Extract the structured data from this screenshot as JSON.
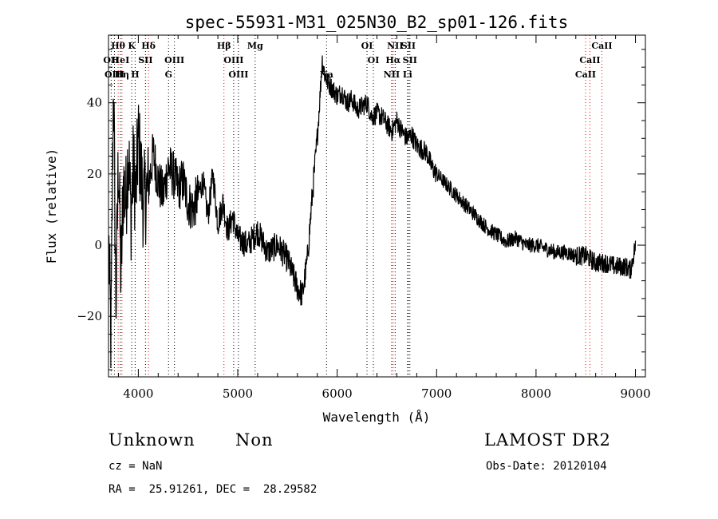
{
  "chart_data": {
    "type": "line",
    "title": "spec-55931-M31_025N30_B2_sp01-126.fits",
    "xlabel": "Wavelength (Å)",
    "ylabel": "Flux (relative)",
    "xlim": [
      3700,
      9100
    ],
    "ylim": [
      -37,
      59
    ],
    "x_ticks": [
      4000,
      5000,
      6000,
      7000,
      8000,
      9000
    ],
    "y_ticks": [
      -20,
      0,
      20,
      40
    ],
    "series": [
      {
        "color": "#000000",
        "x": [
          3700,
          3725,
          3750,
          3775,
          3800,
          3825,
          3850,
          3875,
          3900,
          3925,
          3950,
          3975,
          4000,
          4050,
          4100,
          4150,
          4200,
          4250,
          4300,
          4350,
          4400,
          4450,
          4500,
          4550,
          4600,
          4650,
          4700,
          4750,
          4800,
          4850,
          4900,
          4950,
          5000,
          5100,
          5200,
          5300,
          5400,
          5500,
          5550,
          5600,
          5650,
          5700,
          5750,
          5800,
          5850,
          5875,
          5900,
          5950,
          6000,
          6050,
          6100,
          6150,
          6200,
          6250,
          6300,
          6350,
          6400,
          6450,
          6500,
          6550,
          6600,
          6650,
          6700,
          6750,
          6800,
          6850,
          6900,
          6950,
          7000,
          7100,
          7200,
          7300,
          7400,
          7500,
          7600,
          7700,
          7800,
          7900,
          8000,
          8100,
          8200,
          8300,
          8400,
          8500,
          8600,
          8700,
          8800,
          8900,
          8950,
          9000
        ],
        "values": [
          5,
          -28,
          48,
          -18,
          26,
          -10,
          18,
          12,
          28,
          8,
          22,
          14,
          30,
          12,
          16,
          26,
          18,
          14,
          22,
          20,
          16,
          18,
          12,
          10,
          14,
          18,
          8,
          20,
          6,
          12,
          4,
          8,
          2,
          0,
          4,
          -2,
          0,
          -4,
          -8,
          -12,
          -14,
          -4,
          14,
          30,
          52,
          48,
          46,
          44,
          42,
          43,
          40,
          41,
          38,
          39,
          40,
          36,
          37,
          36,
          34,
          32,
          35,
          32,
          30,
          31,
          28,
          27,
          26,
          22,
          20,
          17,
          14,
          11,
          8,
          5,
          3,
          1,
          2,
          0,
          0,
          -1,
          -2,
          -2,
          -3,
          -3,
          -5,
          -5,
          -6,
          -6,
          -7,
          0
        ]
      }
    ],
    "line_markers": [
      {
        "label": "Hθ",
        "wavelength": 3797,
        "row": 0,
        "color": "#ff0000"
      },
      {
        "label": "K",
        "wavelength": 3934,
        "row": 0,
        "color": "#000000"
      },
      {
        "label": "Hδ",
        "wavelength": 4102,
        "row": 0,
        "color": "#ff0000"
      },
      {
        "label": "Hβ",
        "wavelength": 4861,
        "row": 0,
        "color": "#ff0000"
      },
      {
        "label": "Mg",
        "wavelength": 5175,
        "row": 0,
        "color": "#000000"
      },
      {
        "label": "OI",
        "wavelength": 6300,
        "row": 0,
        "color": "#000000"
      },
      {
        "label": "NII",
        "wavelength": 6583,
        "row": 0,
        "color": "#000000"
      },
      {
        "label": "SII",
        "wavelength": 6716,
        "row": 0,
        "color": "#000000"
      },
      {
        "label": "CaII",
        "wavelength": 8662,
        "row": 0,
        "color": "#ff0000"
      },
      {
        "label": "OII",
        "wavelength": 3727,
        "row": 1,
        "color": "#000000"
      },
      {
        "label": "HeI",
        "wavelength": 3820,
        "row": 1,
        "color": "#000000"
      },
      {
        "label": "SII",
        "wavelength": 4072,
        "row": 1,
        "color": "#000000"
      },
      {
        "label": "OIII",
        "wavelength": 4363,
        "row": 1,
        "color": "#000000"
      },
      {
        "label": "OIII",
        "wavelength": 4959,
        "row": 1,
        "color": "#000000"
      },
      {
        "label": "OI",
        "wavelength": 6364,
        "row": 1,
        "color": "#000000"
      },
      {
        "label": "Hα",
        "wavelength": 6563,
        "row": 1,
        "color": "#ff0000"
      },
      {
        "label": "SII",
        "wavelength": 6731,
        "row": 1,
        "color": "#000000"
      },
      {
        "label": "CaII",
        "wavelength": 8542,
        "row": 1,
        "color": "#ff0000"
      },
      {
        "label": "OIII",
        "wavelength": 3760,
        "row": 2,
        "color": "#000000"
      },
      {
        "label": "Hη",
        "wavelength": 3835,
        "row": 2,
        "color": "#ff0000"
      },
      {
        "label": "H",
        "wavelength": 3968,
        "row": 2,
        "color": "#000000"
      },
      {
        "label": "G",
        "wavelength": 4304,
        "row": 2,
        "color": "#000000"
      },
      {
        "label": "OIII",
        "wavelength": 5007,
        "row": 2,
        "color": "#000000"
      },
      {
        "label": "Na",
        "wavelength": 5893,
        "row": 2,
        "color": "#000000"
      },
      {
        "label": "NII",
        "wavelength": 6548,
        "row": 2,
        "color": "#000000"
      },
      {
        "label": "Li",
        "wavelength": 6708,
        "row": 2,
        "color": "#000000"
      },
      {
        "label": "CaII",
        "wavelength": 8498,
        "row": 2,
        "color": "#ff0000"
      }
    ]
  },
  "info": {
    "class": "Unknown",
    "subclass": "Non",
    "survey": "LAMOST DR2",
    "cz": "cz = NaN",
    "obs_date": "Obs-Date: 20120104",
    "coords": "RA =  25.91261, DEC =  28.29582"
  }
}
